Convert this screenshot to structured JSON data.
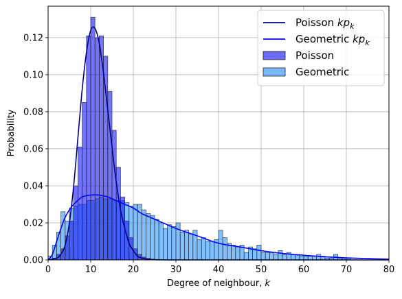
{
  "chart_data": {
    "type": "bar",
    "xlabel": "Degree of neighbour, k",
    "ylabel": "Probability",
    "xlim": [
      0,
      80
    ],
    "ylim": [
      0,
      0.137
    ],
    "xticks": [
      "0",
      "10",
      "20",
      "30",
      "40",
      "50",
      "60",
      "70",
      "80"
    ],
    "yticks": [
      "0.00",
      "0.02",
      "0.04",
      "0.06",
      "0.08",
      "0.10",
      "0.12"
    ],
    "grid": true,
    "legend_position": "top-right",
    "bin_width": 1,
    "histograms": [
      {
        "name": "Poisson",
        "color": "#1f1ff0",
        "bin_starts": [
          1,
          2,
          3,
          4,
          5,
          6,
          7,
          8,
          9,
          10,
          11,
          12,
          13,
          14,
          15,
          16,
          17,
          18,
          19,
          20,
          21,
          22,
          23,
          24
        ],
        "values": [
          0.001,
          0.003,
          0.006,
          0.013,
          0.021,
          0.04,
          0.061,
          0.085,
          0.121,
          0.131,
          0.12,
          0.121,
          0.11,
          0.091,
          0.07,
          0.05,
          0.034,
          0.021,
          0.012,
          0.006,
          0.003,
          0.0015,
          0.0008,
          0.0004
        ]
      },
      {
        "name": "Geometric",
        "color": "#3399ff",
        "bin_starts": [
          0,
          1,
          2,
          3,
          4,
          5,
          6,
          7,
          8,
          9,
          10,
          11,
          12,
          13,
          14,
          15,
          16,
          17,
          18,
          19,
          20,
          21,
          22,
          23,
          24,
          25,
          26,
          27,
          28,
          29,
          30,
          31,
          32,
          33,
          34,
          35,
          36,
          37,
          38,
          39,
          40,
          41,
          42,
          43,
          44,
          45,
          46,
          47,
          48,
          49,
          50,
          51,
          52,
          53,
          54,
          55,
          56,
          57,
          58,
          59,
          60,
          61,
          62,
          63,
          64,
          65,
          66,
          67,
          68,
          69,
          70
        ],
        "values": [
          0.002,
          0.008,
          0.015,
          0.026,
          0.021,
          0.028,
          0.029,
          0.03,
          0.03,
          0.032,
          0.032,
          0.033,
          0.034,
          0.033,
          0.033,
          0.032,
          0.032,
          0.032,
          0.031,
          0.029,
          0.03,
          0.03,
          0.027,
          0.025,
          0.024,
          0.022,
          0.02,
          0.017,
          0.019,
          0.018,
          0.02,
          0.015,
          0.016,
          0.014,
          0.016,
          0.011,
          0.012,
          0.01,
          0.01,
          0.011,
          0.016,
          0.012,
          0.009,
          0.008,
          0.007,
          0.008,
          0.004,
          0.007,
          0.006,
          0.008,
          0.004,
          0.004,
          0.004,
          0.003,
          0.005,
          0.003,
          0.004,
          0.003,
          0.003,
          0.002,
          0.002,
          0.002,
          0.002,
          0.003,
          0.002,
          0.001,
          0.001,
          0.003,
          0.001,
          0.001,
          0.001
        ]
      }
    ],
    "lines": [
      {
        "name": "Poisson kp_k",
        "color": "#00008b",
        "x": [
          0,
          2,
          3,
          4,
          5,
          6,
          7,
          8,
          9,
          10,
          11,
          12,
          13,
          14,
          15,
          16,
          17,
          18,
          19,
          20,
          21,
          22,
          23,
          25,
          28,
          30,
          40,
          80
        ],
        "values": [
          0.0,
          0.001,
          0.003,
          0.008,
          0.02,
          0.04,
          0.066,
          0.092,
          0.112,
          0.124,
          0.125,
          0.117,
          0.101,
          0.081,
          0.061,
          0.042,
          0.027,
          0.017,
          0.009,
          0.005,
          0.002,
          0.001,
          0.0005,
          0.0001,
          0.0,
          0.0,
          0.0,
          0.0
        ]
      },
      {
        "name": "Geometric kp_k",
        "color": "#0000ff",
        "x": [
          0,
          1,
          2,
          3,
          4,
          5,
          6,
          8,
          10,
          12,
          14,
          16,
          18,
          20,
          22,
          25,
          30,
          35,
          40,
          45,
          50,
          55,
          60,
          65,
          70,
          75,
          80
        ],
        "values": [
          0.0,
          0.003,
          0.01,
          0.017,
          0.023,
          0.027,
          0.03,
          0.034,
          0.035,
          0.035,
          0.034,
          0.032,
          0.03,
          0.028,
          0.025,
          0.022,
          0.017,
          0.013,
          0.009,
          0.007,
          0.005,
          0.0035,
          0.0025,
          0.0017,
          0.0011,
          0.0007,
          0.0004
        ]
      }
    ],
    "legend": [
      {
        "kind": "line",
        "label": "Poisson kp_k",
        "color": "#00008b"
      },
      {
        "kind": "line",
        "label": "Geometric kp_k",
        "color": "#0000ff"
      },
      {
        "kind": "patch",
        "label": "Poisson",
        "color": "#6b6bf6"
      },
      {
        "kind": "patch",
        "label": "Geometric",
        "color": "#79b8f8"
      }
    ]
  }
}
